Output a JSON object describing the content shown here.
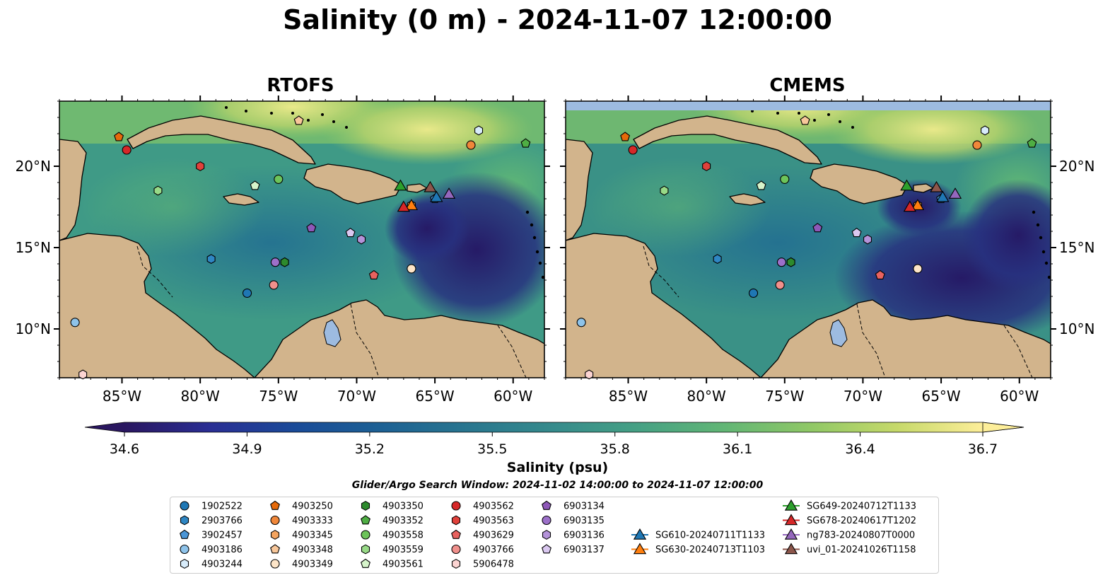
{
  "title": "Salinity (0 m) - 2024-11-07 12:00:00",
  "panels": [
    {
      "title": "RTOFS",
      "model": "rtofs"
    },
    {
      "title": "CMEMS",
      "model": "cmems"
    }
  ],
  "map": {
    "lon_range": [
      -89.0,
      -58.0
    ],
    "lat_range": [
      7.0,
      24.0
    ],
    "lon_ticks": [
      -85,
      -80,
      -75,
      -70,
      -65,
      -60
    ],
    "lon_tick_labels": [
      "85°W",
      "80°W",
      "75°W",
      "70°W",
      "65°W",
      "60°W"
    ],
    "lat_ticks": [
      10,
      15,
      20
    ],
    "lat_tick_labels": [
      "10°N",
      "15°N",
      "20°N"
    ],
    "land_color": "#d2b48c",
    "water_color": "#9dbbe0"
  },
  "colorbar": {
    "min": 34.6,
    "max": 36.7,
    "ticks": [
      "34.6",
      "34.9",
      "35.2",
      "35.5",
      "35.8",
      "36.1",
      "36.4",
      "36.7"
    ],
    "label": "Salinity (psu)",
    "extend": "both",
    "colormap": "haline",
    "colors": [
      "#2a1760",
      "#2a2e94",
      "#1a4b98",
      "#1d6194",
      "#29768f",
      "#368b8c",
      "#46a184",
      "#62b675",
      "#90c866",
      "#c6d96a",
      "#fdee99"
    ]
  },
  "search_window": "Glider/Argo Search Window: 2024-11-02 14:00:00 to 2024-11-07 12:00:00",
  "floats": [
    {
      "id": "1902522",
      "marker": "circle",
      "color": "#1f77b4",
      "lon": -77.0,
      "lat": 12.2
    },
    {
      "id": "2903766",
      "marker": "hexagon",
      "color": "#2f86c3",
      "lon": -79.3,
      "lat": 14.3
    },
    {
      "id": "3902457",
      "marker": "pentagon",
      "color": "#4a95d6",
      "lon": -65.0,
      "lat": 18.0
    },
    {
      "id": "4903186",
      "marker": "circle",
      "color": "#8ec3ea",
      "lon": -88.0,
      "lat": 10.4
    },
    {
      "id": "4903244",
      "marker": "hexagon",
      "color": "#d8ecfb",
      "lon": -62.2,
      "lat": 22.2
    },
    {
      "id": "4903250",
      "marker": "pentagon",
      "color": "#e66a0a",
      "lon": -85.2,
      "lat": 21.8
    },
    {
      "id": "4903333",
      "marker": "circle",
      "color": "#f0873a",
      "lon": -62.7,
      "lat": 21.3
    },
    {
      "id": "4903345",
      "marker": "hexagon",
      "color": "#f4a45f",
      "lon": -66.5,
      "lat": 17.6
    },
    {
      "id": "4903348",
      "marker": "pentagon",
      "color": "#f8c79a",
      "lon": -73.7,
      "lat": 22.8
    },
    {
      "id": "4903349",
      "marker": "circle",
      "color": "#fde5c8",
      "lon": -66.5,
      "lat": 13.7
    },
    {
      "id": "4903350",
      "marker": "hexagon",
      "color": "#2d8a2d",
      "lon": -74.6,
      "lat": 14.1
    },
    {
      "id": "4903352",
      "marker": "pentagon",
      "color": "#4fae44",
      "lon": -59.2,
      "lat": 21.4
    },
    {
      "id": "4903558",
      "marker": "circle",
      "color": "#6dc45a",
      "lon": -75.0,
      "lat": 19.2
    },
    {
      "id": "4903559",
      "marker": "hexagon",
      "color": "#98da87",
      "lon": -82.7,
      "lat": 18.5
    },
    {
      "id": "4903561",
      "marker": "pentagon",
      "color": "#d6f4ca",
      "lon": -76.5,
      "lat": 18.8
    },
    {
      "id": "4903562",
      "marker": "circle",
      "color": "#d62728",
      "lon": -84.7,
      "lat": 21.0
    },
    {
      "id": "4903563",
      "marker": "hexagon",
      "color": "#e0413b",
      "lon": -80.0,
      "lat": 20.0
    },
    {
      "id": "4903629",
      "marker": "pentagon",
      "color": "#e8625f",
      "lon": -68.9,
      "lat": 13.3
    },
    {
      "id": "4903766",
      "marker": "circle",
      "color": "#f0908c",
      "lon": -75.3,
      "lat": 12.7
    },
    {
      "id": "5906478",
      "marker": "hexagon",
      "color": "#fcd4d2",
      "lon": -87.5,
      "lat": 7.2
    },
    {
      "id": "6903134",
      "marker": "pentagon",
      "color": "#8e58b8",
      "lon": -72.9,
      "lat": 16.2
    },
    {
      "id": "6903135",
      "marker": "circle",
      "color": "#9c70c9",
      "lon": -75.2,
      "lat": 14.1
    },
    {
      "id": "6903136",
      "marker": "hexagon",
      "color": "#b493d9",
      "lon": -69.7,
      "lat": 15.5
    },
    {
      "id": "6903137",
      "marker": "pentagon",
      "color": "#dac8f0",
      "lon": -70.4,
      "lat": 15.9
    }
  ],
  "gliders": [
    {
      "id": "SG610-20240711T1133",
      "color": "#1f77b4",
      "lon": -64.9,
      "lat": 18.1
    },
    {
      "id": "SG630-20240713T1103",
      "color": "#ff7f0e",
      "lon": -66.5,
      "lat": 17.6
    },
    {
      "id": "SG649-20240712T1133",
      "color": "#2ca02c",
      "lon": -67.2,
      "lat": 18.8
    },
    {
      "id": "SG678-20240617T1202",
      "color": "#d62728",
      "lon": -67.0,
      "lat": 17.5
    },
    {
      "id": "ng783-20240807T0000",
      "color": "#9467bd",
      "lon": -64.1,
      "lat": 18.3
    },
    {
      "id": "uvi_01-20241026T1158",
      "color": "#8c564b",
      "lon": -65.3,
      "lat": 18.7
    }
  ]
}
